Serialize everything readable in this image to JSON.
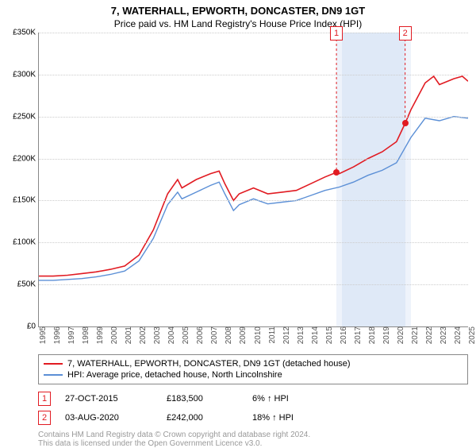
{
  "title_line1": "7, WATERHALL, EPWORTH, DONCASTER, DN9 1GT",
  "title_line2": "Price paid vs. HM Land Registry's House Price Index (HPI)",
  "chart": {
    "type": "line",
    "background_color": "#ffffff",
    "grid_color": "#cccccc",
    "axis_color": "#888888",
    "ylim": [
      0,
      350000
    ],
    "ytick_step": 50000,
    "yticks": [
      "£0",
      "£50K",
      "£100K",
      "£150K",
      "£200K",
      "£250K",
      "£300K",
      "£350K"
    ],
    "x_start": 1995,
    "x_end": 2025,
    "xticks": [
      "1995",
      "1996",
      "1997",
      "1998",
      "1999",
      "2000",
      "2001",
      "2002",
      "2003",
      "2004",
      "2005",
      "2006",
      "2007",
      "2008",
      "2009",
      "2010",
      "2011",
      "2012",
      "2013",
      "2014",
      "2015",
      "2016",
      "2017",
      "2018",
      "2019",
      "2020",
      "2021",
      "2022",
      "2023",
      "2024",
      "2025"
    ],
    "bands": [
      {
        "from": 2015.8,
        "to": 2016.2,
        "color": "#eef3fb"
      },
      {
        "from": 2016.2,
        "to": 2020.6,
        "color": "#dfe9f7"
      },
      {
        "from": 2020.6,
        "to": 2021.0,
        "color": "#eef3fb"
      }
    ],
    "series": [
      {
        "name": "property",
        "color": "#e11b22",
        "width": 1.6,
        "data": [
          [
            1995,
            60000
          ],
          [
            1996,
            60000
          ],
          [
            1997,
            61000
          ],
          [
            1998,
            63000
          ],
          [
            1999,
            65000
          ],
          [
            2000,
            68000
          ],
          [
            2001,
            72000
          ],
          [
            2002,
            85000
          ],
          [
            2003,
            115000
          ],
          [
            2004,
            158000
          ],
          [
            2004.7,
            175000
          ],
          [
            2005,
            165000
          ],
          [
            2006,
            175000
          ],
          [
            2007,
            182000
          ],
          [
            2007.6,
            185000
          ],
          [
            2008,
            170000
          ],
          [
            2008.6,
            150000
          ],
          [
            2009,
            158000
          ],
          [
            2010,
            165000
          ],
          [
            2011,
            158000
          ],
          [
            2012,
            160000
          ],
          [
            2013,
            162000
          ],
          [
            2014,
            170000
          ],
          [
            2015,
            178000
          ],
          [
            2015.8,
            183500
          ],
          [
            2016,
            182000
          ],
          [
            2017,
            190000
          ],
          [
            2018,
            200000
          ],
          [
            2019,
            208000
          ],
          [
            2020,
            220000
          ],
          [
            2020.6,
            242000
          ],
          [
            2021,
            258000
          ],
          [
            2022,
            290000
          ],
          [
            2022.6,
            298000
          ],
          [
            2023,
            288000
          ],
          [
            2024,
            295000
          ],
          [
            2024.6,
            298000
          ],
          [
            2025,
            292000
          ]
        ]
      },
      {
        "name": "hpi",
        "color": "#5b8fd6",
        "width": 1.4,
        "data": [
          [
            1995,
            55000
          ],
          [
            1996,
            55000
          ],
          [
            1997,
            56000
          ],
          [
            1998,
            57000
          ],
          [
            1999,
            59000
          ],
          [
            2000,
            62000
          ],
          [
            2001,
            66000
          ],
          [
            2002,
            78000
          ],
          [
            2003,
            105000
          ],
          [
            2004,
            145000
          ],
          [
            2004.7,
            160000
          ],
          [
            2005,
            152000
          ],
          [
            2006,
            160000
          ],
          [
            2007,
            168000
          ],
          [
            2007.6,
            172000
          ],
          [
            2008,
            158000
          ],
          [
            2008.6,
            138000
          ],
          [
            2009,
            145000
          ],
          [
            2010,
            152000
          ],
          [
            2011,
            146000
          ],
          [
            2012,
            148000
          ],
          [
            2013,
            150000
          ],
          [
            2014,
            156000
          ],
          [
            2015,
            162000
          ],
          [
            2016,
            166000
          ],
          [
            2017,
            172000
          ],
          [
            2018,
            180000
          ],
          [
            2019,
            186000
          ],
          [
            2020,
            195000
          ],
          [
            2021,
            225000
          ],
          [
            2022,
            248000
          ],
          [
            2023,
            245000
          ],
          [
            2024,
            250000
          ],
          [
            2025,
            248000
          ]
        ]
      }
    ],
    "markers": [
      {
        "id": "1",
        "x": 2015.8,
        "y": 183500,
        "box_color": "#e11b22",
        "dot_color": "#e11b22"
      },
      {
        "id": "2",
        "x": 2020.6,
        "y": 242000,
        "box_color": "#e11b22",
        "dot_color": "#e11b22"
      }
    ]
  },
  "legend": {
    "border_color": "#888888",
    "items": [
      {
        "color": "#e11b22",
        "label": "7, WATERHALL, EPWORTH, DONCASTER, DN9 1GT (detached house)"
      },
      {
        "color": "#5b8fd6",
        "label": "HPI: Average price, detached house, North Lincolnshire"
      }
    ]
  },
  "transactions": [
    {
      "id": "1",
      "box_color": "#e11b22",
      "date": "27-OCT-2015",
      "price": "£183,500",
      "delta": "6%",
      "delta_suffix": "HPI"
    },
    {
      "id": "2",
      "box_color": "#e11b22",
      "date": "03-AUG-2020",
      "price": "£242,000",
      "delta": "18%",
      "delta_suffix": "HPI"
    }
  ],
  "footer": {
    "line1": "Contains HM Land Registry data © Crown copyright and database right 2024.",
    "line2": "This data is licensed under the Open Government Licence v3.0."
  }
}
